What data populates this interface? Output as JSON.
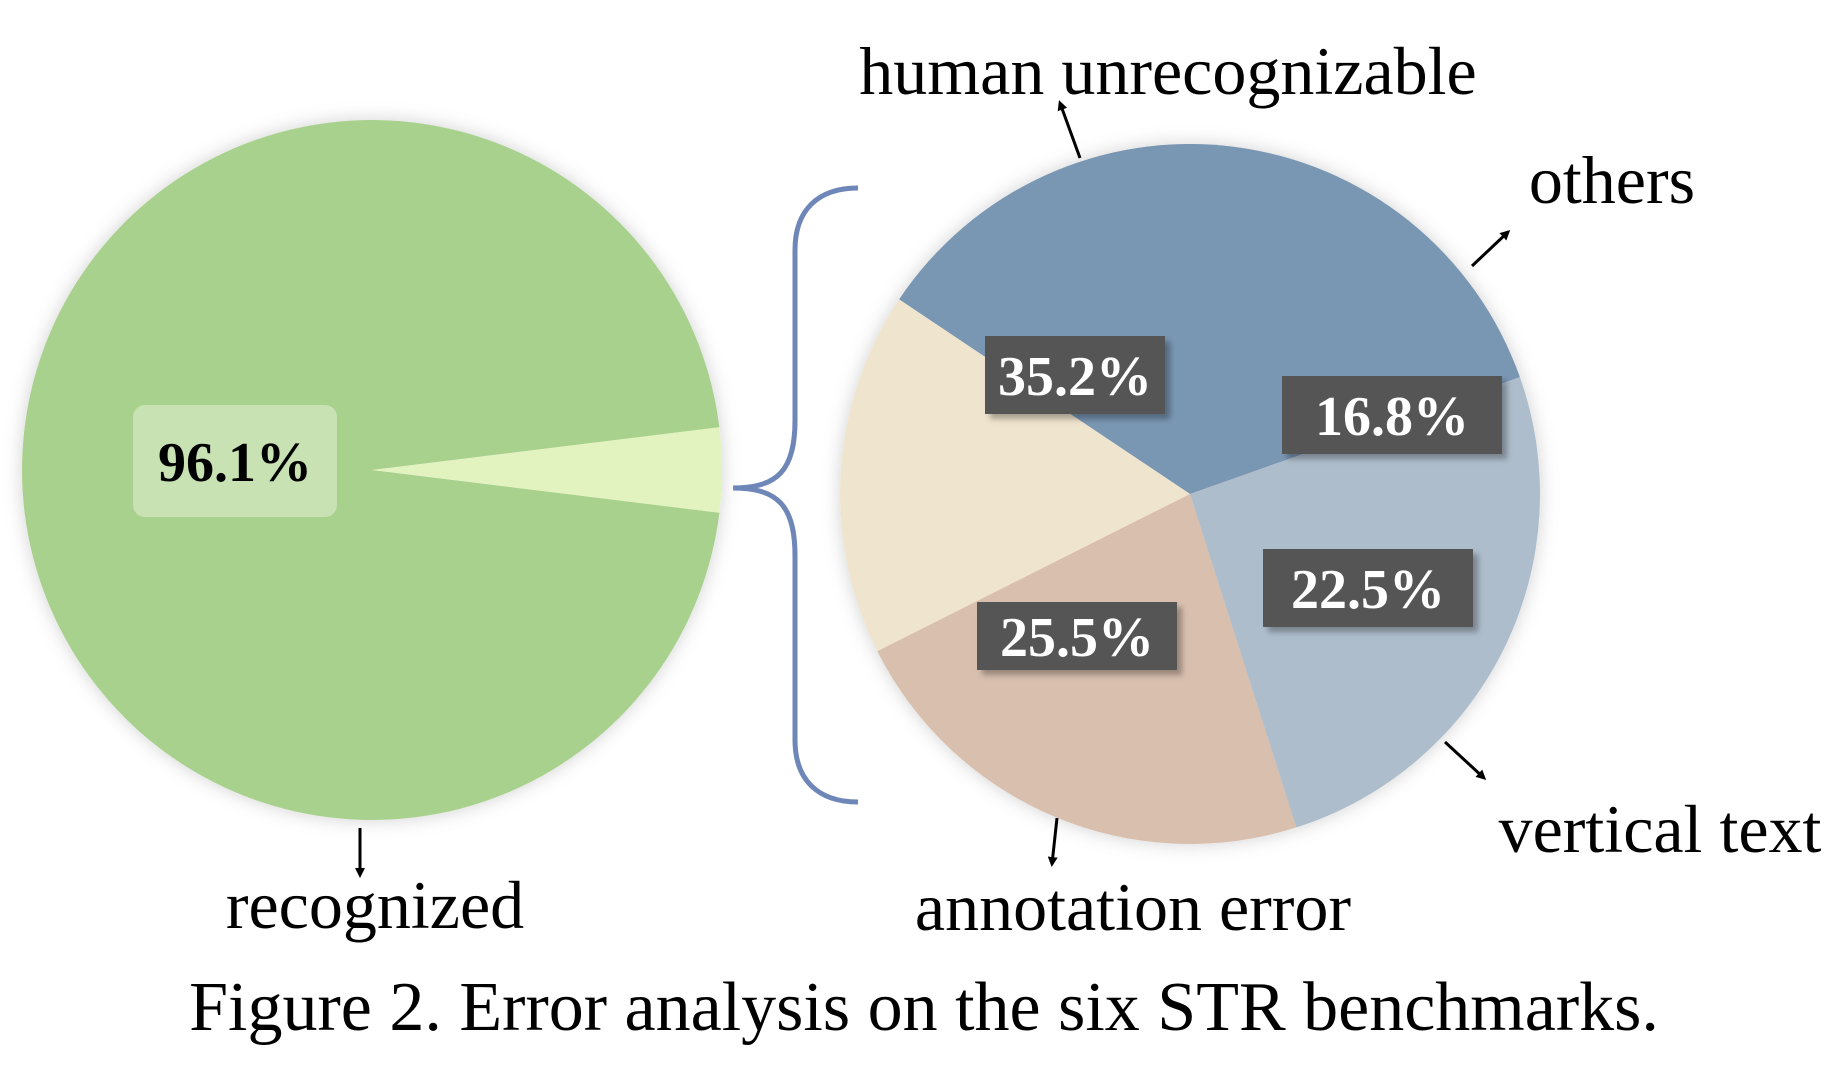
{
  "caption": "Figure 2. Error analysis on the six STR benchmarks.",
  "chart_data": [
    {
      "type": "pie",
      "slices": [
        {
          "label": "recognized",
          "value": 96.1,
          "value_label": "96.1%",
          "color": "#a9d18e"
        },
        {
          "label": "",
          "value": 3.9,
          "value_label": "",
          "color": "#e2f3c0"
        }
      ]
    },
    {
      "type": "pie",
      "slices": [
        {
          "label": "human unrecognizable",
          "value": 35.2,
          "value_label": "35.2%",
          "color": "#7996b3"
        },
        {
          "label": "others",
          "value": 16.8,
          "value_label": "16.8%",
          "color": "#efe4cd"
        },
        {
          "label": "vertical text",
          "value": 22.5,
          "value_label": "22.5%",
          "color": "#d8bfae"
        },
        {
          "label": "annotation error",
          "value": 25.5,
          "value_label": "25.5%",
          "color": "#adbdcb"
        }
      ]
    }
  ],
  "colors": {
    "brace": "#6f87b8",
    "label_box_dark": "#555555",
    "label_box_light": "#c8e2b4",
    "arrow": "#000000"
  }
}
